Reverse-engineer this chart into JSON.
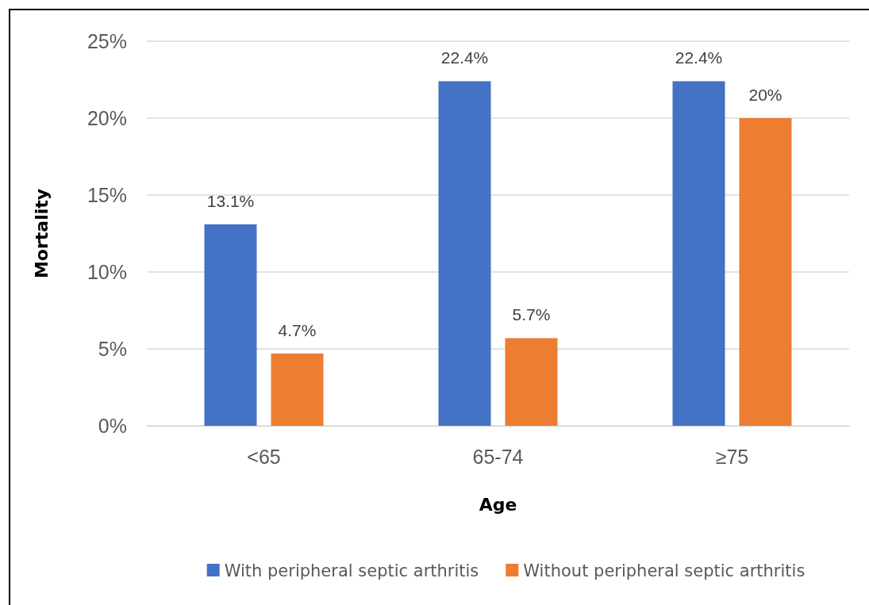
{
  "chart_data": {
    "type": "bar",
    "xlabel": "Age",
    "ylabel": "Mortality",
    "categories": [
      "<65",
      "65-74",
      "≥75"
    ],
    "series": [
      {
        "name": "With peripheral septic arthritis",
        "color": "#4472c4",
        "values": [
          13.1,
          22.4,
          22.4
        ],
        "value_labels": [
          "13.1%",
          "22.4%",
          "22.4%"
        ]
      },
      {
        "name": "Without peripheral septic arthritis",
        "color": "#ed7d31",
        "values": [
          4.7,
          5.7,
          20
        ],
        "value_labels": [
          "4.7%",
          "5.7%",
          "20%"
        ]
      }
    ],
    "ylim": [
      0,
      25
    ],
    "yticks": [
      {
        "value": 0,
        "label": "0%"
      },
      {
        "value": 5,
        "label": "5%"
      },
      {
        "value": 10,
        "label": "10%"
      },
      {
        "value": 15,
        "label": "15%"
      },
      {
        "value": 20,
        "label": "20%"
      },
      {
        "value": 25,
        "label": "25%"
      }
    ],
    "grid": "y",
    "legend": "bottom"
  }
}
